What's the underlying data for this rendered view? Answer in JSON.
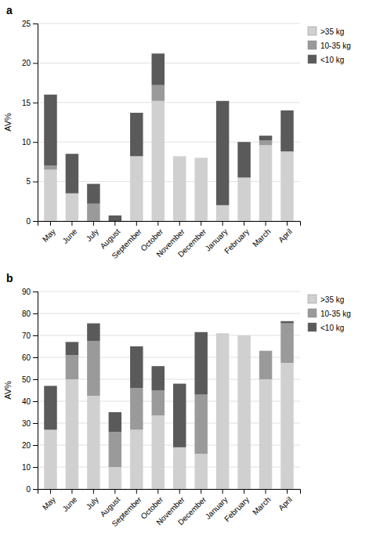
{
  "chart_data": [
    {
      "type": "bar",
      "title": "a",
      "ylabel": "AV%",
      "stacked": true,
      "grid": true,
      "legend": "right",
      "categories": [
        "May",
        "June",
        "July",
        "August",
        "September",
        "October",
        "November",
        "December",
        "January",
        "February",
        "March",
        "April"
      ],
      "series": [
        {
          "name": ">35 kg",
          "color": "#d0d0d0",
          "values": [
            6.5,
            3.5,
            0.0,
            0.0,
            8.2,
            15.2,
            8.2,
            8.0,
            2.0,
            5.5,
            9.6,
            8.8
          ]
        },
        {
          "name": "10-35 kg",
          "color": "#9a9a9a",
          "values": [
            0.5,
            0.0,
            2.2,
            0.0,
            0.0,
            2.0,
            0.0,
            0.0,
            0.0,
            0.0,
            0.6,
            0.0
          ]
        },
        {
          "name": "<10 kg",
          "color": "#5a5a5a",
          "values": [
            9.0,
            5.0,
            2.5,
            0.7,
            5.5,
            4.0,
            0.0,
            0.0,
            13.2,
            4.5,
            0.6,
            5.2
          ]
        }
      ],
      "ylim": [
        0,
        25
      ],
      "yticks": [
        0,
        5,
        10,
        15,
        20,
        25
      ]
    },
    {
      "type": "bar",
      "title": "b",
      "ylabel": "AV%",
      "stacked": true,
      "grid": true,
      "legend": "right",
      "categories": [
        "May",
        "June",
        "July",
        "August",
        "September",
        "October",
        "November",
        "December",
        "January",
        "February",
        "March",
        "April"
      ],
      "series": [
        {
          "name": ">35 kg",
          "color": "#d0d0d0",
          "values": [
            27.0,
            50.0,
            42.5,
            10.0,
            27.0,
            33.5,
            19.0,
            16.0,
            71.0,
            70.0,
            50.0,
            57.5
          ]
        },
        {
          "name": "10-35 kg",
          "color": "#9a9a9a",
          "values": [
            0.0,
            11.0,
            25.0,
            16.0,
            19.0,
            11.5,
            0.0,
            27.0,
            0.0,
            0.0,
            13.0,
            18.0
          ]
        },
        {
          "name": "<10 kg",
          "color": "#5a5a5a",
          "values": [
            20.0,
            6.0,
            8.0,
            9.0,
            19.0,
            11.0,
            29.0,
            28.5,
            0.0,
            0.0,
            0.0,
            1.0
          ]
        }
      ],
      "ylim": [
        0,
        90
      ],
      "yticks": [
        0,
        10,
        20,
        30,
        40,
        50,
        60,
        70,
        80,
        90
      ]
    }
  ]
}
